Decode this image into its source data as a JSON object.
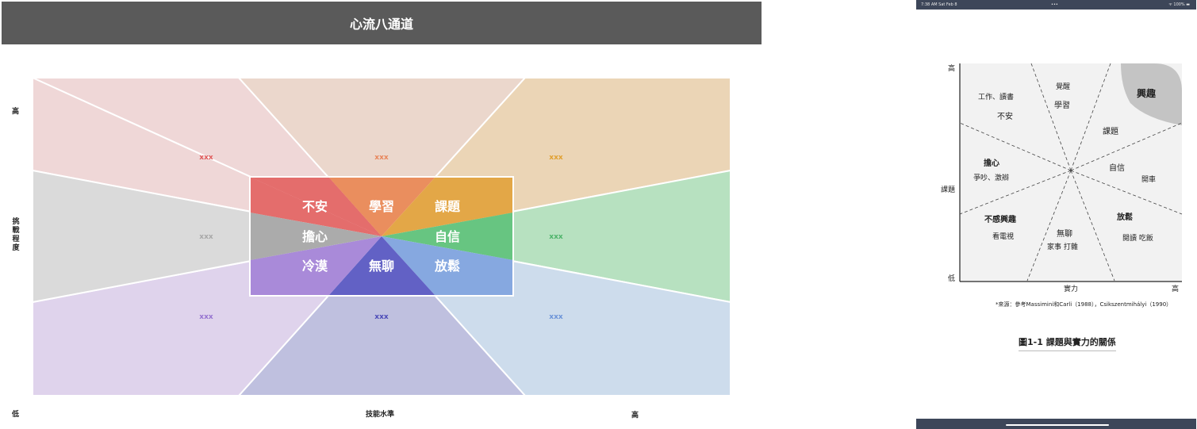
{
  "header": {
    "title": "心流八通道"
  },
  "axes": {
    "y_high": "高",
    "y_label": "挑戰程度",
    "y_low": "低",
    "x_label": "技能水準",
    "x_high": "高"
  },
  "zones": [
    {
      "id": "anxiety",
      "placeholder": "xxx",
      "core": "不安",
      "fill": "#efd7d7",
      "core_color": "#e46d6c",
      "text_color": "#e05a5a"
    },
    {
      "id": "learning",
      "placeholder": "xxx",
      "core": "學習",
      "fill": "#ebd7cc",
      "core_color": "#ea8e5e",
      "text_color": "#e8855a"
    },
    {
      "id": "challenge",
      "placeholder": "xxx",
      "core": "課題",
      "fill": "#ebd5b6",
      "core_color": "#e3a747",
      "text_color": "#e0a030"
    },
    {
      "id": "confidence",
      "placeholder": "xxx",
      "core": "自信",
      "fill": "#b7e1c0",
      "core_color": "#67c581",
      "text_color": "#4db36a"
    },
    {
      "id": "relax",
      "placeholder": "xxx",
      "core": "放鬆",
      "fill": "#cddcec",
      "core_color": "#86a8e0",
      "text_color": "#6b93d8"
    },
    {
      "id": "boredom",
      "placeholder": "xxx",
      "core": "無聊",
      "fill": "#bfc0df",
      "core_color": "#6261c5",
      "text_color": "#4b4ab8"
    },
    {
      "id": "apathy",
      "placeholder": "xxx",
      "core": "冷漠",
      "fill": "#dfd3ec",
      "core_color": "#a98ad9",
      "text_color": "#9673d0"
    },
    {
      "id": "worry",
      "placeholder": "xxx",
      "core": "擔心",
      "fill": "#dadada",
      "core_color": "#ababab",
      "text_color": "#a8a8a8"
    }
  ],
  "phone": {
    "status": {
      "time": "7:38 AM  Sat Feb 8",
      "dots": "•••",
      "battery": "ᯤ 100% ▬"
    },
    "axis": {
      "y_high": "高",
      "y_mid": "課題",
      "y_low": "低",
      "x_mid": "實力",
      "x_high": "高"
    },
    "regions": {
      "anxiety_sub": "工作、讀書",
      "anxiety": "不安",
      "awake": "覺醒",
      "learning": "學習",
      "interest": "興趣",
      "challenge": "課題",
      "worry": "擔心",
      "worry_sub": "爭吵、激辯",
      "confidence": "自信",
      "confidence_sub": "開車",
      "apathy": "不感興趣",
      "apathy_sub": "看電視",
      "boredom": "無聊",
      "boredom_sub": "家事 打雜",
      "relax": "放鬆",
      "relax_sub": "閱讀 吃飯"
    },
    "source": "*來源：參考Massimini和Carli（1988），Csikszentmihályi（1990）",
    "caption": "圖1-1 課題與實力的關係"
  }
}
